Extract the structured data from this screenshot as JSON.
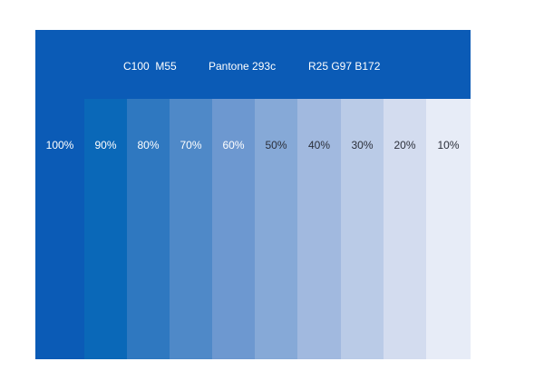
{
  "colors": {
    "base": "#0B5BB6",
    "label_light": "#ffffff",
    "label_dark": "#2b2f3a"
  },
  "color_specs": {
    "cmyk": "C100  M55",
    "pantone": "Pantone 293c",
    "rgb": "R25 G97 B172"
  },
  "tints": [
    {
      "label": "100%",
      "value": 100,
      "color": "#0B5BB6",
      "text_color": "#ffffff"
    },
    {
      "label": "90%",
      "value": 90,
      "color": "#0A68B8",
      "text_color": "#ffffff"
    },
    {
      "label": "80%",
      "value": 80,
      "color": "#2F78C0",
      "text_color": "#ffffff"
    },
    {
      "label": "70%",
      "value": 70,
      "color": "#4F89C8",
      "text_color": "#ffffff"
    },
    {
      "label": "60%",
      "value": 60,
      "color": "#6D98D0",
      "text_color": "#ffffff"
    },
    {
      "label": "50%",
      "value": 50,
      "color": "#86A9D7",
      "text_color": "#2b2f3a"
    },
    {
      "label": "40%",
      "value": 40,
      "color": "#A1B9DF",
      "text_color": "#2b2f3a"
    },
    {
      "label": "30%",
      "value": 30,
      "color": "#BACBE7",
      "text_color": "#2b2f3a"
    },
    {
      "label": "20%",
      "value": 20,
      "color": "#D3DCEF",
      "text_color": "#2b2f3a"
    },
    {
      "label": "10%",
      "value": 10,
      "color": "#E7ECF7",
      "text_color": "#2b2f3a"
    }
  ]
}
